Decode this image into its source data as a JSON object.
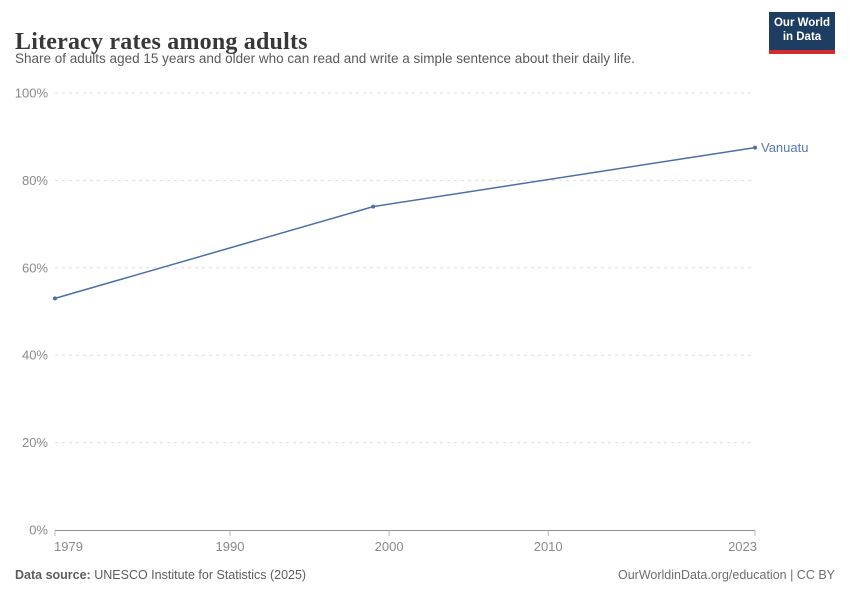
{
  "header": {
    "title": "Literacy rates among adults",
    "subtitle": "Share of adults aged 15 years and older who can read and write a simple sentence about their daily life.",
    "logo": {
      "line1": "Our World",
      "line2": "in Data",
      "bg_color": "#1d3d63",
      "accent_color": "#d42b2f",
      "text_color": "#ffffff"
    }
  },
  "chart_data": {
    "type": "line",
    "title": "Literacy rates among adults",
    "xlabel": "",
    "ylabel": "",
    "xlim": [
      1979,
      2023
    ],
    "ylim": [
      0,
      100
    ],
    "x_ticks": [
      1979,
      1990,
      2000,
      2010,
      2023
    ],
    "y_ticks": [
      0,
      20,
      40,
      60,
      80,
      100
    ],
    "y_tick_suffix": "%",
    "grid": "horizontal-dashed",
    "grid_color": "#dddddd",
    "axis_color": "#8f8f8f",
    "tick_label_color": "#8a8a8a",
    "legend": "end-of-line-label",
    "series": [
      {
        "name": "Vanuatu",
        "color": "#4c6fa8",
        "label_color": "#5878b5",
        "points": [
          {
            "year": 1979,
            "value": 53
          },
          {
            "year": 1999,
            "value": 74
          },
          {
            "year": 2023,
            "value": 87.5
          }
        ]
      }
    ]
  },
  "footer": {
    "source_label": "Data source:",
    "source_text": "UNESCO Institute for Statistics (2025)",
    "attribution": "OurWorldinData.org/education | CC BY"
  }
}
